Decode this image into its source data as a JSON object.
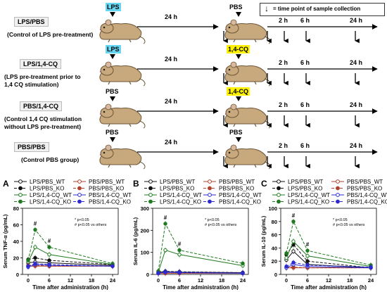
{
  "legend_top": "= time point of sample collection",
  "groups": [
    {
      "name": "LPS/PBS",
      "desc": [
        "(Control of LPS pre-treatment)"
      ],
      "first_tag": "LPS",
      "first_style": "lps",
      "second_tag": "PBS",
      "second_style": "plain"
    },
    {
      "name": "LPS/1,4-CQ",
      "desc": [
        "(LPS pre-treatment prior to",
        "1,4 CQ stimulation)"
      ],
      "first_tag": "LPS",
      "first_style": "lps",
      "second_tag": "1,4-CQ",
      "second_style": "cq"
    },
    {
      "name": "PBS/1,4-CQ",
      "desc": [
        "(Control 1,4 CQ stimulation",
        "without LPS pre-treatment)"
      ],
      "first_tag": "PBS",
      "first_style": "plain",
      "second_tag": "1,4-CQ",
      "second_style": "cq"
    },
    {
      "name": "PBS/PBS",
      "desc": [
        "(Control PBS group)"
      ],
      "first_tag": "PBS",
      "first_style": "plain",
      "second_tag": "PBS",
      "second_style": "plain"
    }
  ],
  "interval_label": "24 h",
  "timepoints": [
    "2 h",
    "6 h",
    "24 h"
  ],
  "legend_rows": [
    [
      "LPS/PBS_WT",
      "PBS/PBS_WT"
    ],
    [
      "LPS/PBS_KO",
      "PBS/PBS_KO"
    ],
    [
      "LPS/1,4-CQ_WT",
      "PBS/1,4-CQ_WT"
    ],
    [
      "LPS/1,4-CQ_KO",
      "PBS/1,4-CQ_KO"
    ]
  ],
  "panels": [
    {
      "letter": "A",
      "ylabel": "Serum TNF-α (pg/mL)",
      "yticks": [
        0,
        20,
        40,
        60,
        80
      ],
      "ymax": 80,
      "sig1": "*  p<0.05",
      "sig2": "#  p<0.05 vs others"
    },
    {
      "letter": "B",
      "ylabel": "Serum IL-6 (pg/mL)",
      "yticks": [
        0,
        100,
        200,
        300
      ],
      "ymax": 300,
      "sig1": "*  p<0.05",
      "sig2": "#  p<0.05 vs others"
    },
    {
      "letter": "C",
      "ylabel": "Serum IL-10 (pg/mL)",
      "yticks": [
        0,
        20,
        40,
        60,
        80,
        100
      ],
      "ymax": 100,
      "sig1": "*  p<0.05",
      "sig2": "#  p<0.05 vs others"
    }
  ],
  "xlabel": "Time after administration (h)",
  "xticks": [
    0,
    6,
    12,
    18,
    24
  ],
  "chart_data": [
    {
      "type": "line",
      "title": "",
      "xlabel": "Time after administration (h)",
      "ylabel": "Serum TNF-α (pg/mL)",
      "ylim": [
        0,
        80
      ],
      "x": [
        0,
        2,
        6,
        24
      ],
      "series": [
        {
          "name": "LPS/PBS_WT",
          "values": [
            14,
            15,
            14,
            11
          ]
        },
        {
          "name": "LPS/PBS_KO",
          "values": [
            18,
            20,
            17,
            12
          ]
        },
        {
          "name": "LPS/1,4-CQ_WT",
          "values": [
            15,
            33,
            24,
            12
          ]
        },
        {
          "name": "LPS/1,4-CQ_KO",
          "values": [
            17,
            54,
            33,
            13
          ]
        },
        {
          "name": "PBS/PBS_WT",
          "values": [
            10,
            10,
            10,
            10
          ]
        },
        {
          "name": "PBS/PBS_KO",
          "values": [
            11,
            11,
            10,
            10
          ]
        },
        {
          "name": "PBS/1,4-CQ_WT",
          "values": [
            9,
            12,
            11,
            10
          ]
        },
        {
          "name": "PBS/1,4-CQ_KO",
          "values": [
            10,
            13,
            12,
            10
          ]
        }
      ]
    },
    {
      "type": "line",
      "title": "",
      "xlabel": "Time after administration (h)",
      "ylabel": "Serum IL-6 (pg/mL)",
      "ylim": [
        0,
        300
      ],
      "x": [
        0,
        2,
        6,
        24
      ],
      "series": [
        {
          "name": "LPS/PBS_WT",
          "values": [
            10,
            12,
            10,
            8
          ]
        },
        {
          "name": "LPS/PBS_KO",
          "values": [
            12,
            14,
            12,
            8
          ]
        },
        {
          "name": "LPS/1,4-CQ_WT",
          "values": [
            10,
            110,
            90,
            40
          ]
        },
        {
          "name": "LPS/1,4-CQ_KO",
          "values": [
            15,
            230,
            110,
            50
          ]
        },
        {
          "name": "PBS/PBS_WT",
          "values": [
            5,
            5,
            5,
            5
          ]
        },
        {
          "name": "PBS/PBS_KO",
          "values": [
            5,
            6,
            5,
            5
          ]
        },
        {
          "name": "PBS/1,4-CQ_WT",
          "values": [
            5,
            10,
            8,
            5
          ]
        },
        {
          "name": "PBS/1,4-CQ_KO",
          "values": [
            6,
            12,
            10,
            6
          ]
        }
      ]
    },
    {
      "type": "line",
      "title": "",
      "xlabel": "Time after administration (h)",
      "ylabel": "Serum IL-10 (pg/mL)",
      "ylim": [
        0,
        100
      ],
      "x": [
        0,
        2,
        6,
        24
      ],
      "series": [
        {
          "name": "LPS/PBS_WT",
          "values": [
            22,
            35,
            15,
            10
          ]
        },
        {
          "name": "LPS/PBS_KO",
          "values": [
            30,
            45,
            20,
            10
          ]
        },
        {
          "name": "LPS/1,4-CQ_WT",
          "values": [
            25,
            50,
            28,
            12
          ]
        },
        {
          "name": "LPS/1,4-CQ_KO",
          "values": [
            32,
            80,
            36,
            14
          ]
        },
        {
          "name": "PBS/PBS_WT",
          "values": [
            10,
            10,
            10,
            10
          ]
        },
        {
          "name": "PBS/PBS_KO",
          "values": [
            11,
            11,
            10,
            10
          ]
        },
        {
          "name": "PBS/1,4-CQ_WT",
          "values": [
            10,
            15,
            12,
            10
          ]
        },
        {
          "name": "PBS/1,4-CQ_KO",
          "values": [
            12,
            18,
            14,
            11
          ]
        }
      ]
    }
  ],
  "series_styles": [
    {
      "color": "#111111",
      "dash": "",
      "fill": "#ffffff"
    },
    {
      "color": "#111111",
      "dash": "4,2",
      "fill": "#111111"
    },
    {
      "color": "#1f7a1f",
      "dash": "",
      "fill": "#ffffff"
    },
    {
      "color": "#1f7a1f",
      "dash": "4,2",
      "fill": "#1f7a1f"
    },
    {
      "color": "#b0402a",
      "dash": "",
      "fill": "#ffffff"
    },
    {
      "color": "#b0402a",
      "dash": "4,2",
      "fill": "#b0402a"
    },
    {
      "color": "#2a2ad0",
      "dash": "",
      "fill": "#ffffff"
    },
    {
      "color": "#2a2ad0",
      "dash": "4,2",
      "fill": "#2a2ad0"
    }
  ]
}
